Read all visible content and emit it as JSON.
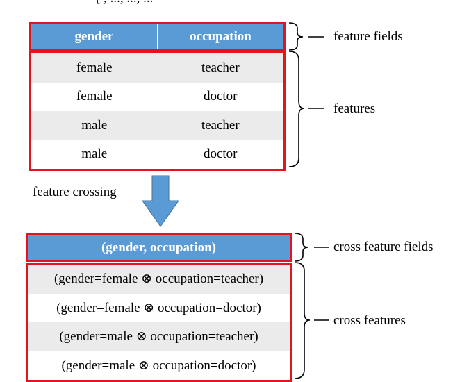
{
  "top_clip_text": "[                , ...,  ..., ...",
  "feature_table": {
    "headers": [
      "gender",
      "occupation"
    ],
    "rows": [
      [
        "female",
        "teacher"
      ],
      [
        "female",
        "doctor"
      ],
      [
        "male",
        "teacher"
      ],
      [
        "male",
        "doctor"
      ]
    ]
  },
  "cross_table": {
    "header": "(gender, occupation)",
    "rows": [
      "(gender=female ⊗ occupation=teacher)",
      "(gender=female ⊗ occupation=doctor)",
      "(gender=male ⊗ occupation=teacher)",
      "(gender=male ⊗ occupation=doctor)"
    ]
  },
  "annotations": {
    "feature_fields": "feature fields",
    "features": "features",
    "cross_feature_fields": "cross feature fields",
    "cross_features": "cross features"
  },
  "crossing_label": "feature crossing",
  "colors": {
    "header_blue": "#5b9bd5",
    "highlight_red": "#e3141c",
    "row_shade": "#ebebeb",
    "arrow_fill": "#5b9bd5",
    "arrow_stroke": "#41719c"
  }
}
